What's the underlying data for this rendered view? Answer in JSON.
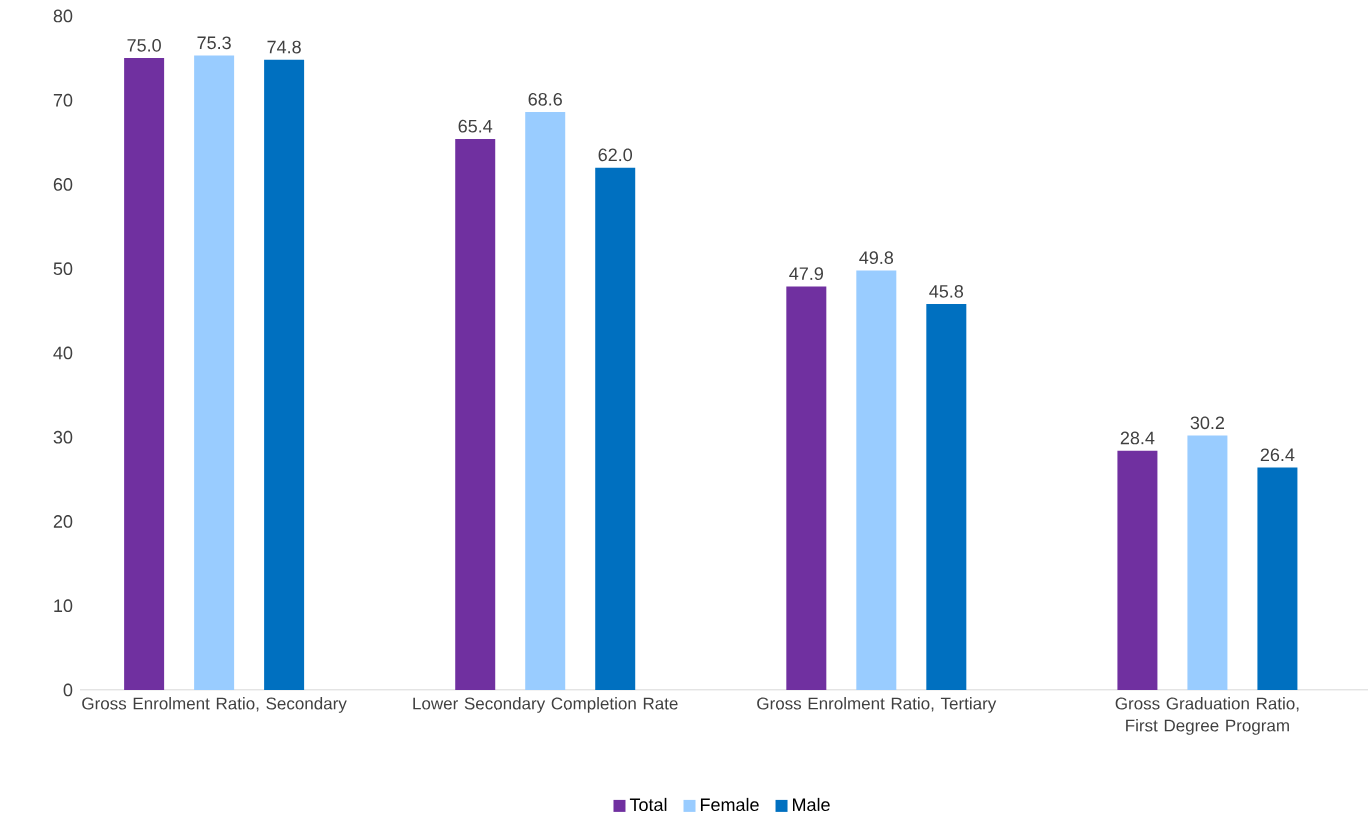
{
  "chart_data": {
    "type": "bar",
    "categories": [
      "Gross Enrolment Ratio, Secondary",
      "Lower Secondary Completion Rate",
      "Gross Enrolment Ratio, Tertiary",
      "Gross Graduation Ratio, First Degree Program"
    ],
    "series": [
      {
        "name": "Total",
        "color": "#7030a0",
        "values": [
          75.0,
          65.4,
          47.9,
          28.4
        ],
        "value_labels": [
          "75.0",
          "65.4",
          "47.9",
          "28.4"
        ]
      },
      {
        "name": "Female",
        "color": "#99ccff",
        "values": [
          75.3,
          68.6,
          49.8,
          30.2
        ],
        "value_labels": [
          "75.3",
          "68.6",
          "49.8",
          "30.2"
        ]
      },
      {
        "name": "Male",
        "color": "#0070c0",
        "values": [
          74.8,
          62.0,
          45.8,
          26.4
        ],
        "value_labels": [
          "74.8",
          "62.0",
          "45.8",
          "26.4"
        ]
      }
    ],
    "ylim": [
      0,
      80
    ],
    "yticks": [
      0,
      10,
      20,
      30,
      40,
      50,
      60,
      70,
      80
    ],
    "grid": false,
    "legend": "bottom"
  }
}
